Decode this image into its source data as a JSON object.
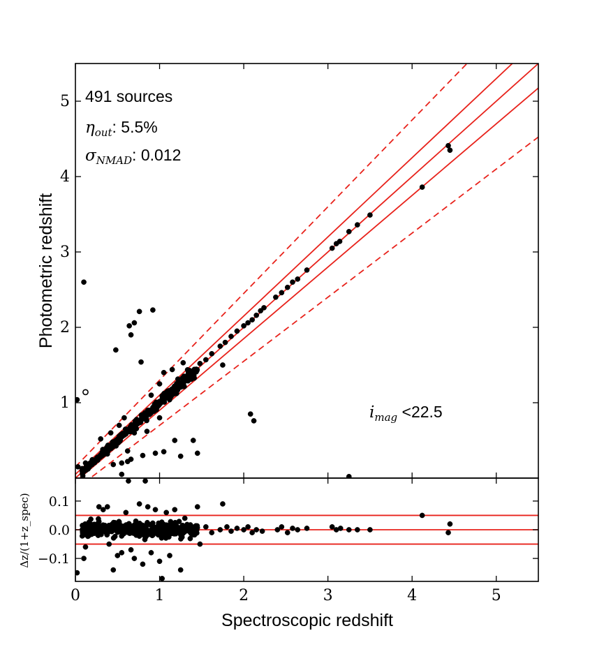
{
  "chart_data": [
    {
      "type": "scatter",
      "panel": "main",
      "xlabel": "Spectroscopic redshift",
      "ylabel": "Photometric redshift",
      "xlim": [
        0,
        5.5
      ],
      "ylim": [
        0,
        5.5
      ],
      "yticks": [
        {
          "value": 1,
          "label": "1"
        },
        {
          "value": 2,
          "label": "2"
        },
        {
          "value": 3,
          "label": "3"
        },
        {
          "value": 4,
          "label": "4"
        },
        {
          "value": 5,
          "label": "5"
        }
      ],
      "stats": {
        "sources_text": "491 sources",
        "eta_symbol": "η",
        "eta_sub": "out",
        "eta_value": ": 5.5%",
        "sigma_symbol": "σ",
        "sigma_sub": "NMAD",
        "sigma_value": ": 0.012",
        "mag_symbol": "i",
        "mag_sub": "mag",
        "mag_value": " <22.5"
      },
      "reference_lines": [
        {
          "kind": "one_to_one",
          "style": "solid",
          "color": "#e8221b"
        },
        {
          "kind": "one_plus_z_offset",
          "offset": 0.05,
          "style": "solid",
          "color": "#e8221b"
        },
        {
          "kind": "one_plus_z_offset",
          "offset": -0.05,
          "style": "solid",
          "color": "#e8221b"
        },
        {
          "kind": "one_plus_z_offset",
          "offset": 0.15,
          "style": "dashed",
          "color": "#e8221b"
        },
        {
          "kind": "one_plus_z_offset",
          "offset": -0.15,
          "style": "dashed",
          "color": "#e8221b"
        }
      ],
      "outliers": [
        {
          "x": 0.02,
          "y": 1.04
        },
        {
          "x": 0.1,
          "y": 2.6
        },
        {
          "x": 0.12,
          "y": 1.14,
          "open": true
        },
        {
          "x": 0.48,
          "y": 1.7
        },
        {
          "x": 0.45,
          "y": 0.18
        },
        {
          "x": 0.55,
          "y": 0.2
        },
        {
          "x": 0.62,
          "y": 0.22
        },
        {
          "x": 0.64,
          "y": 2.02
        },
        {
          "x": 0.66,
          "y": 1.9
        },
        {
          "x": 0.7,
          "y": 2.06
        },
        {
          "x": 0.76,
          "y": 2.21
        },
        {
          "x": 0.78,
          "y": 1.54
        },
        {
          "x": 0.92,
          "y": 2.23
        },
        {
          "x": 0.66,
          "y": 0.25
        },
        {
          "x": 0.8,
          "y": 0.3
        },
        {
          "x": 0.95,
          "y": 0.33
        },
        {
          "x": 1.05,
          "y": 0.35
        },
        {
          "x": 1.18,
          "y": 0.5
        },
        {
          "x": 0.62,
          "y": 0.36
        },
        {
          "x": 0.55,
          "y": 0.05
        },
        {
          "x": 0.38,
          "y": 0.32
        },
        {
          "x": 0.7,
          "y": 0.6
        },
        {
          "x": 1.05,
          "y": 1.4
        },
        {
          "x": 1.15,
          "y": 1.44
        },
        {
          "x": 1.28,
          "y": 1.53
        },
        {
          "x": 1.4,
          "y": 0.5
        },
        {
          "x": 1.45,
          "y": 0.33
        },
        {
          "x": 1.25,
          "y": 0.29
        },
        {
          "x": 1.0,
          "y": 0.8
        },
        {
          "x": 1.75,
          "y": 1.5
        },
        {
          "x": 2.08,
          "y": 0.85
        },
        {
          "x": 2.12,
          "y": 0.76
        },
        {
          "x": 3.25,
          "y": 0.02
        },
        {
          "x": 0.03,
          "y": 0.15
        },
        {
          "x": 0.12,
          "y": 0.2
        },
        {
          "x": 0.3,
          "y": 0.52
        },
        {
          "x": 0.52,
          "y": 0.7
        },
        {
          "x": 0.85,
          "y": 0.62
        },
        {
          "x": 0.9,
          "y": 1.1
        },
        {
          "x": 0.58,
          "y": 0.8
        },
        {
          "x": 1.0,
          "y": 1.25
        },
        {
          "x": 0.42,
          "y": 0.6
        }
      ],
      "tail_points": [
        {
          "x": 1.48,
          "y": 1.52
        },
        {
          "x": 1.55,
          "y": 1.57
        },
        {
          "x": 1.62,
          "y": 1.65
        },
        {
          "x": 1.72,
          "y": 1.75
        },
        {
          "x": 1.78,
          "y": 1.8
        },
        {
          "x": 1.85,
          "y": 1.88
        },
        {
          "x": 1.92,
          "y": 1.95
        },
        {
          "x": 2.0,
          "y": 2.02
        },
        {
          "x": 2.05,
          "y": 2.06
        },
        {
          "x": 2.1,
          "y": 2.1
        },
        {
          "x": 2.15,
          "y": 2.16
        },
        {
          "x": 2.2,
          "y": 2.22
        },
        {
          "x": 2.24,
          "y": 2.26
        },
        {
          "x": 2.38,
          "y": 2.4
        },
        {
          "x": 2.45,
          "y": 2.46
        },
        {
          "x": 2.52,
          "y": 2.53
        },
        {
          "x": 2.58,
          "y": 2.6
        },
        {
          "x": 2.64,
          "y": 2.64
        },
        {
          "x": 2.75,
          "y": 2.76
        },
        {
          "x": 3.05,
          "y": 3.05
        },
        {
          "x": 3.1,
          "y": 3.11
        },
        {
          "x": 3.14,
          "y": 3.14
        },
        {
          "x": 3.25,
          "y": 3.27
        },
        {
          "x": 3.35,
          "y": 3.36
        },
        {
          "x": 3.5,
          "y": 3.49
        },
        {
          "x": 4.12,
          "y": 3.86
        },
        {
          "x": 4.43,
          "y": 4.41
        },
        {
          "x": 4.45,
          "y": 4.35
        }
      ],
      "core": {
        "n": 380,
        "x_range": [
          0.08,
          1.45
        ],
        "scatter_sigma": 0.012
      }
    },
    {
      "type": "scatter",
      "panel": "residual",
      "ylabel": "Δz/(1+z_spec)",
      "xlim": [
        0,
        5.5
      ],
      "ylim": [
        -0.18,
        0.18
      ],
      "xticks": [
        {
          "value": 0,
          "label": "0"
        },
        {
          "value": 1,
          "label": "1"
        },
        {
          "value": 2,
          "label": "2"
        },
        {
          "value": 3,
          "label": "3"
        },
        {
          "value": 4,
          "label": "4"
        },
        {
          "value": 5,
          "label": "5"
        }
      ],
      "yticks": [
        {
          "value": 0.1,
          "label": "0.1"
        },
        {
          "value": 0.0,
          "label": "0.0"
        },
        {
          "value": -0.1,
          "label": "−0.1"
        }
      ],
      "hlines": [
        0.05,
        0.0,
        -0.05
      ],
      "outliers": [
        {
          "x": 0.02,
          "y": -0.15
        },
        {
          "x": 0.1,
          "y": -0.1
        },
        {
          "x": 0.12,
          "y": -0.06
        },
        {
          "x": 0.28,
          "y": 0.08
        },
        {
          "x": 0.33,
          "y": 0.07
        },
        {
          "x": 0.38,
          "y": 0.08
        },
        {
          "x": 0.4,
          "y": -0.05
        },
        {
          "x": 0.45,
          "y": -0.14
        },
        {
          "x": 0.5,
          "y": -0.09
        },
        {
          "x": 0.55,
          "y": -0.08
        },
        {
          "x": 0.6,
          "y": 0.06
        },
        {
          "x": 0.63,
          "y": 0.17
        },
        {
          "x": 0.66,
          "y": -0.07
        },
        {
          "x": 0.7,
          "y": -0.1
        },
        {
          "x": 0.76,
          "y": 0.09
        },
        {
          "x": 0.8,
          "y": -0.12
        },
        {
          "x": 0.83,
          "y": 0.17
        },
        {
          "x": 0.86,
          "y": 0.08
        },
        {
          "x": 0.9,
          "y": -0.08
        },
        {
          "x": 0.95,
          "y": 0.07
        },
        {
          "x": 1.0,
          "y": -0.11
        },
        {
          "x": 1.03,
          "y": -0.17
        },
        {
          "x": 1.08,
          "y": 0.06
        },
        {
          "x": 1.12,
          "y": -0.09
        },
        {
          "x": 1.18,
          "y": 0.07
        },
        {
          "x": 1.25,
          "y": -0.14
        },
        {
          "x": 1.3,
          "y": 0.04
        },
        {
          "x": 1.45,
          "y": 0.08
        },
        {
          "x": 1.48,
          "y": -0.05
        },
        {
          "x": 1.75,
          "y": 0.09
        },
        {
          "x": 4.12,
          "y": 0.05
        },
        {
          "x": 4.45,
          "y": 0.02
        },
        {
          "x": 4.43,
          "y": -0.01
        }
      ],
      "tail_points": [
        {
          "x": 1.55,
          "y": 0.01
        },
        {
          "x": 1.62,
          "y": -0.01
        },
        {
          "x": 1.72,
          "y": 0.0
        },
        {
          "x": 1.8,
          "y": 0.01
        },
        {
          "x": 1.85,
          "y": -0.005
        },
        {
          "x": 1.92,
          "y": 0.005
        },
        {
          "x": 2.0,
          "y": 0.0
        },
        {
          "x": 2.05,
          "y": 0.01
        },
        {
          "x": 2.1,
          "y": -0.01
        },
        {
          "x": 2.15,
          "y": 0.0
        },
        {
          "x": 2.22,
          "y": -0.005
        },
        {
          "x": 2.4,
          "y": 0.0
        },
        {
          "x": 2.45,
          "y": 0.01
        },
        {
          "x": 2.52,
          "y": -0.01
        },
        {
          "x": 2.58,
          "y": 0.005
        },
        {
          "x": 2.64,
          "y": 0.0
        },
        {
          "x": 2.75,
          "y": 0.005
        },
        {
          "x": 3.05,
          "y": 0.01
        },
        {
          "x": 3.1,
          "y": 0.0
        },
        {
          "x": 3.15,
          "y": 0.005
        },
        {
          "x": 3.25,
          "y": 0.0
        },
        {
          "x": 3.35,
          "y": 0.0
        },
        {
          "x": 3.5,
          "y": 0.0
        }
      ],
      "core": {
        "n": 380,
        "x_range": [
          0.08,
          1.45
        ],
        "scatter_sigma": 0.012
      }
    }
  ]
}
